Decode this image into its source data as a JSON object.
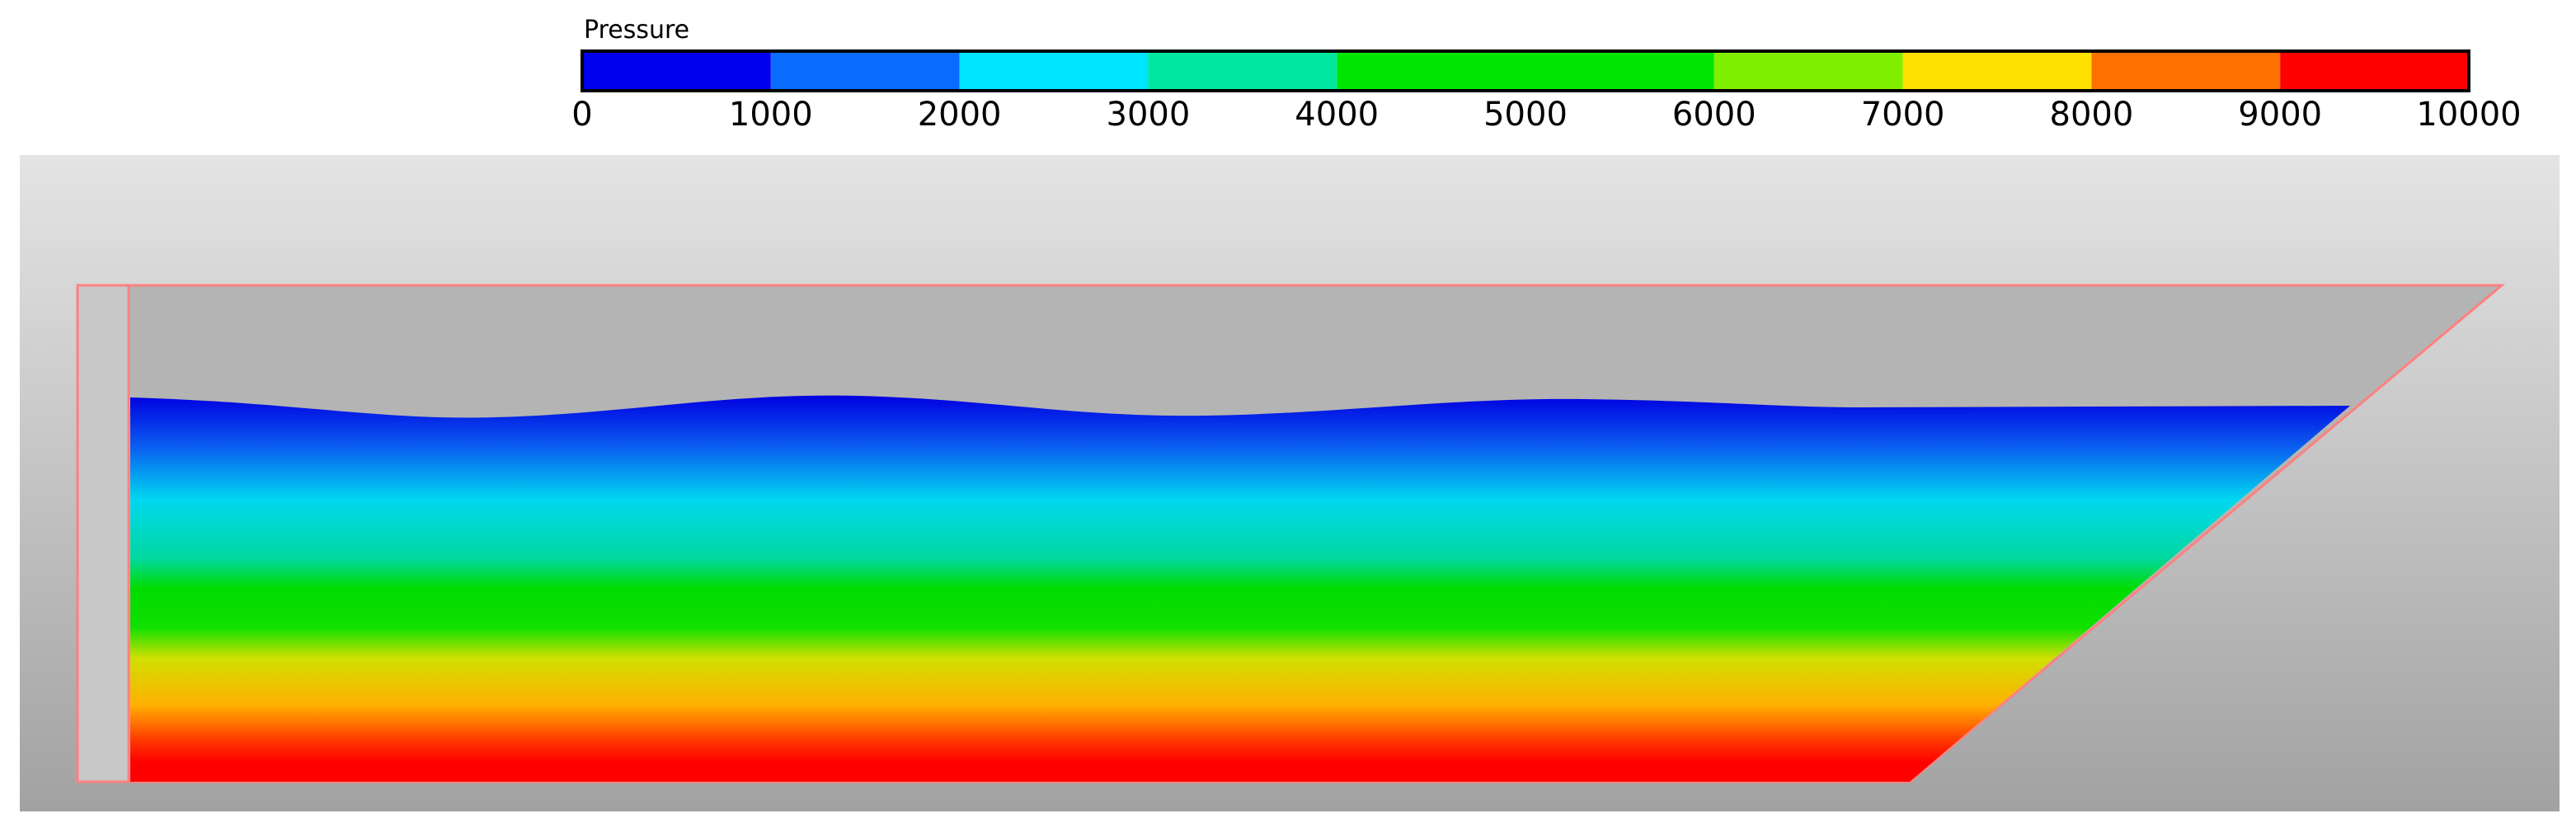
{
  "colorbar": {
    "title": "Pressure",
    "ticks": [
      0,
      1000,
      2000,
      3000,
      4000,
      5000,
      6000,
      7000,
      8000,
      9000,
      10000
    ],
    "colors": [
      "#0000ee",
      "#0a6cff",
      "#00e5ff",
      "#00e8a0",
      "#00e600",
      "#00e600",
      "#80f000",
      "#ffe000",
      "#ff7000",
      "#ff0000"
    ]
  }
}
